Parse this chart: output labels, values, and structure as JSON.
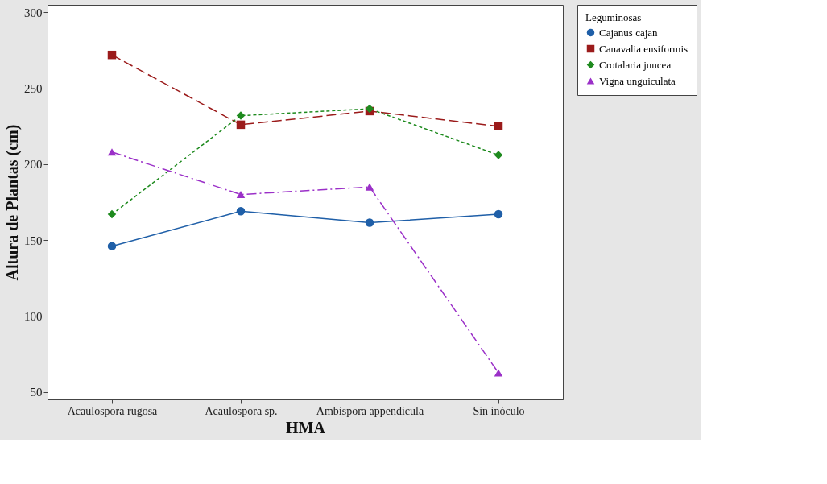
{
  "chart_data": {
    "type": "line",
    "xlabel": "HMA",
    "ylabel": "Altura de Plantas (cm)",
    "legend_title": "Leguminosas",
    "legend": "right",
    "grid": false,
    "categories": [
      "Acaulospora rugosa",
      "Acaulospora sp.",
      "Ambispora appendicula",
      "Sin inóculo"
    ],
    "ylim": [
      45,
      305
    ],
    "yticks": [
      50,
      100,
      150,
      200,
      250,
      300
    ],
    "series": [
      {
        "name": "Cajanus cajan",
        "color": "#1f5fa8",
        "marker": "circle",
        "line_style": "solid",
        "values": [
          146,
          169,
          161.5,
          167
        ]
      },
      {
        "name": "Canavalia ensiformis",
        "color": "#9b1b1b",
        "marker": "square",
        "line_style": "dashed",
        "values": [
          272,
          226,
          235,
          225
        ]
      },
      {
        "name": "Crotalaria juncea",
        "color": "#1e8a1e",
        "marker": "diamond",
        "line_style": "dotted",
        "values": [
          167,
          232,
          236.5,
          206
        ]
      },
      {
        "name": "Vigna unguiculata",
        "color": "#9b30c8",
        "marker": "triangle",
        "line_style": "dashdot",
        "values": [
          208,
          180,
          185,
          62.5
        ]
      }
    ]
  }
}
